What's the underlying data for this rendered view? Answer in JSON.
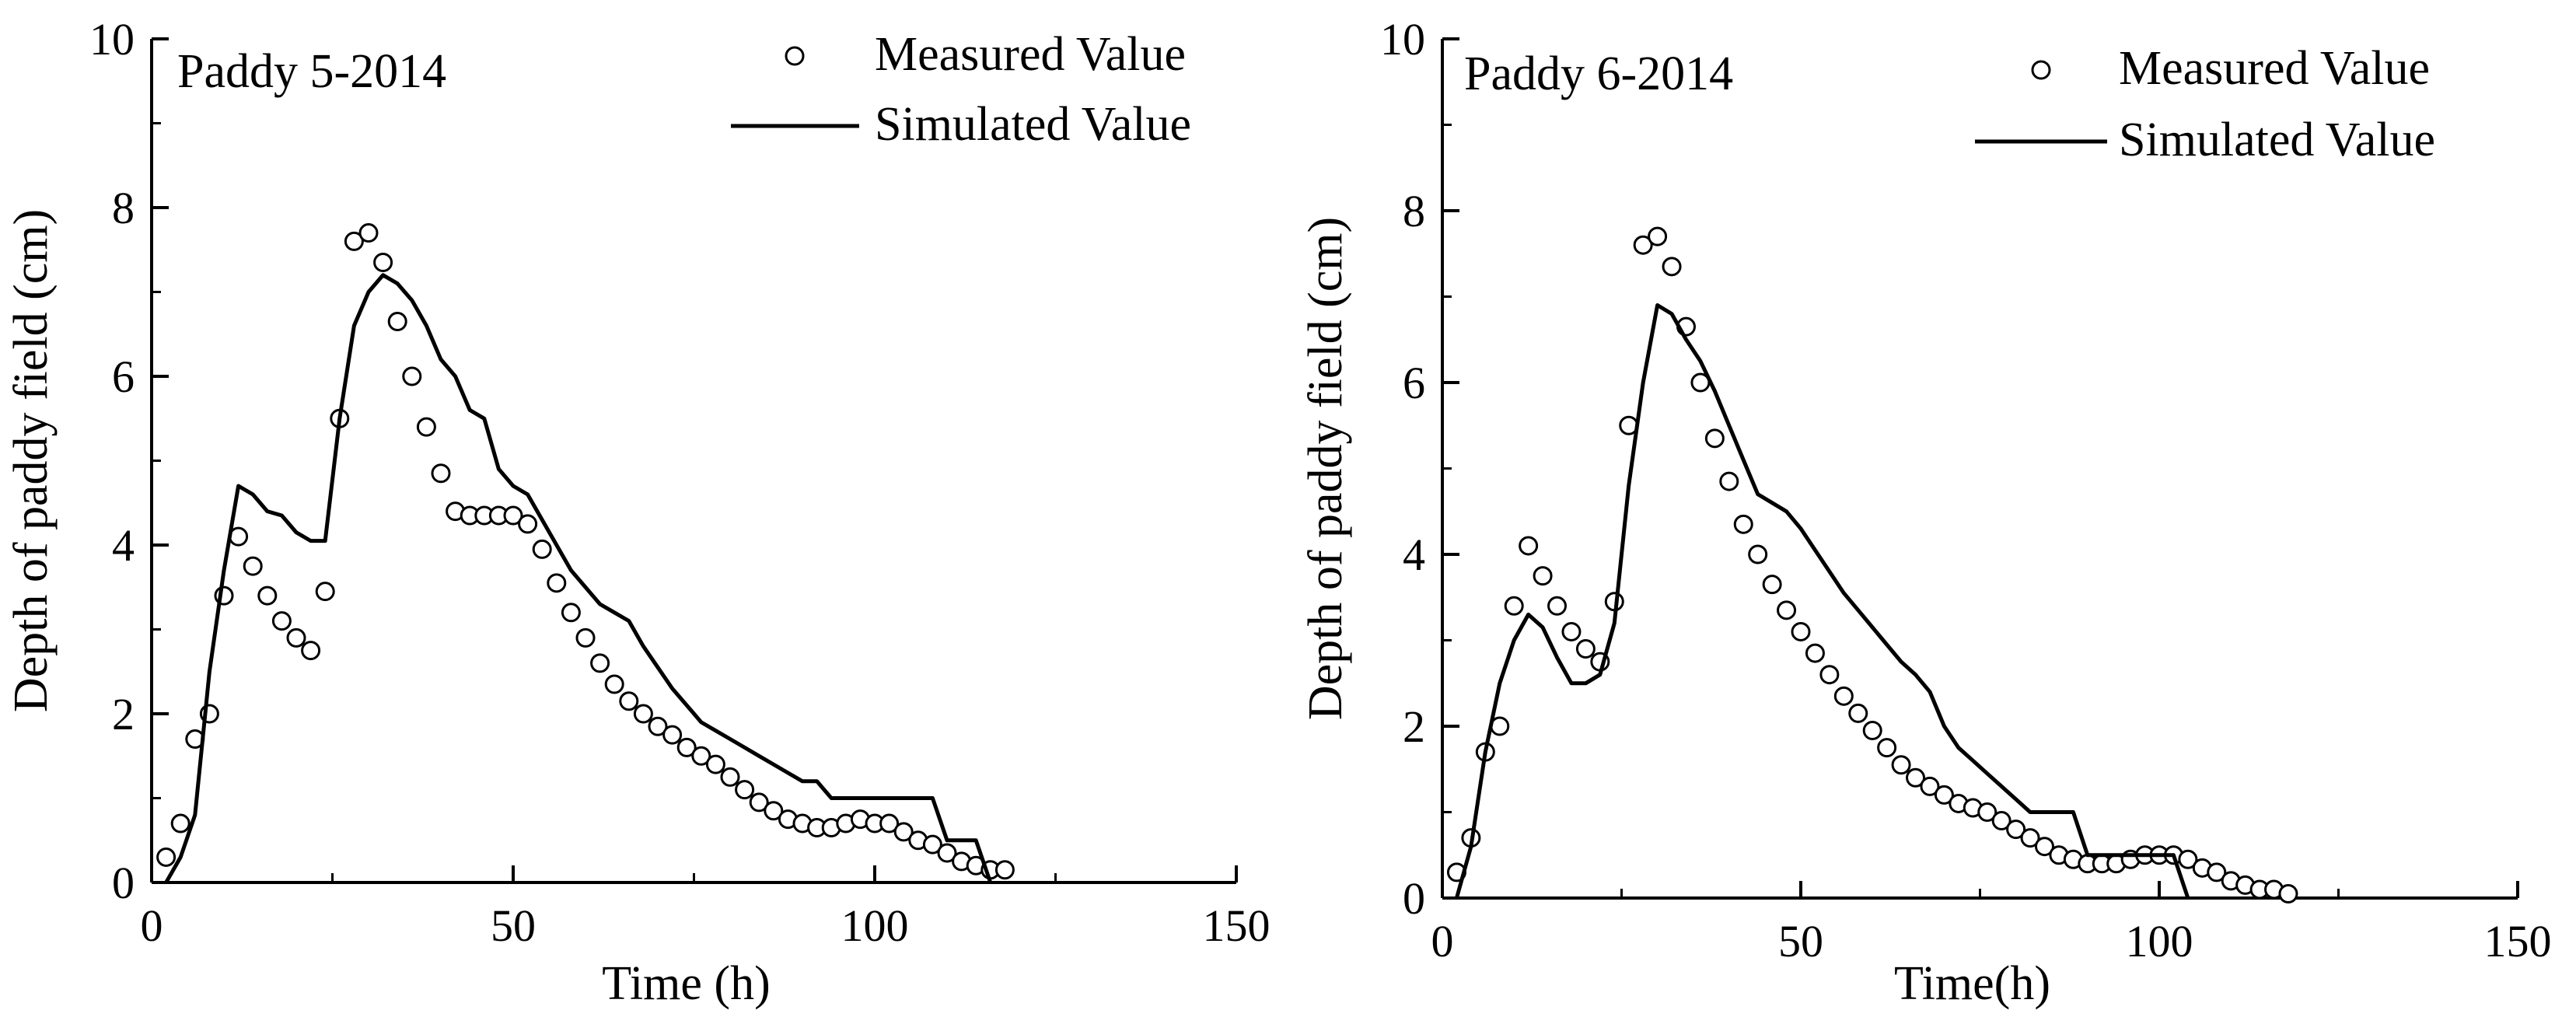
{
  "chart_data": [
    {
      "type": "line+scatter",
      "panel_label": "Paddy 5-2014",
      "xlabel": "Time (h)",
      "ylabel": "Depth of paddy field (cm)",
      "xlim": [
        0,
        150
      ],
      "ylim": [
        0,
        10
      ],
      "xticks": [
        0,
        50,
        100,
        150
      ],
      "yticks": [
        0,
        2,
        4,
        6,
        8,
        10
      ],
      "grid": false,
      "legend_position": "top-right",
      "series": [
        {
          "name": "Measured Value",
          "style": "open-circle markers",
          "x": [
            2,
            4,
            6,
            8,
            10,
            12,
            14,
            16,
            18,
            20,
            22,
            24,
            26,
            28,
            30,
            32,
            34,
            36,
            38,
            40,
            42,
            44,
            46,
            48,
            50,
            52,
            54,
            56,
            58,
            60,
            62,
            64,
            66,
            68,
            70,
            72,
            74,
            76,
            78,
            80,
            82,
            84,
            86,
            88,
            90,
            92,
            94,
            96,
            98,
            100,
            102,
            104,
            106,
            108,
            110,
            112,
            114,
            116,
            118
          ],
          "y": [
            0.3,
            0.7,
            1.7,
            2.0,
            3.4,
            4.1,
            3.75,
            3.4,
            3.1,
            2.9,
            2.75,
            3.45,
            5.5,
            7.6,
            7.7,
            7.35,
            6.65,
            6.0,
            5.4,
            4.85,
            4.4,
            4.35,
            4.35,
            4.35,
            4.35,
            4.25,
            3.95,
            3.55,
            3.2,
            2.9,
            2.6,
            2.35,
            2.15,
            2.0,
            1.85,
            1.75,
            1.6,
            1.5,
            1.4,
            1.25,
            1.1,
            0.95,
            0.85,
            0.75,
            0.7,
            0.65,
            0.65,
            0.7,
            0.75,
            0.7,
            0.7,
            0.6,
            0.5,
            0.45,
            0.35,
            0.25,
            0.2,
            0.15,
            0.15
          ]
        },
        {
          "name": "Simulated Value",
          "style": "solid line",
          "x": [
            2,
            4,
            6,
            8,
            10,
            12,
            14,
            16,
            18,
            20,
            22,
            24,
            26,
            28,
            30,
            32,
            34,
            36,
            38,
            40,
            42,
            44,
            46,
            48,
            50,
            52,
            54,
            56,
            58,
            60,
            62,
            64,
            66,
            68,
            70,
            72,
            74,
            76,
            78,
            80,
            82,
            84,
            86,
            88,
            90,
            92,
            94,
            96,
            98,
            100,
            102,
            104,
            106,
            108,
            110,
            112,
            114,
            116
          ],
          "y": [
            0.0,
            0.3,
            0.8,
            2.5,
            3.7,
            4.7,
            4.6,
            4.4,
            4.35,
            4.15,
            4.05,
            4.05,
            5.5,
            6.6,
            7.0,
            7.2,
            7.1,
            6.9,
            6.6,
            6.2,
            6.0,
            5.6,
            5.5,
            4.9,
            4.7,
            4.6,
            4.3,
            4.0,
            3.7,
            3.5,
            3.3,
            3.2,
            3.1,
            2.8,
            2.55,
            2.3,
            2.1,
            1.9,
            1.8,
            1.7,
            1.6,
            1.5,
            1.4,
            1.3,
            1.2,
            1.2,
            1.0,
            1.0,
            1.0,
            1.0,
            1.0,
            1.0,
            1.0,
            1.0,
            0.5,
            0.5,
            0.5,
            0.0
          ]
        }
      ]
    },
    {
      "type": "line+scatter",
      "panel_label": "Paddy 6-2014",
      "xlabel": "Time(h)",
      "ylabel": "Depth of paddy field (cm)",
      "xlim": [
        0,
        150
      ],
      "ylim": [
        0,
        10
      ],
      "xticks": [
        0,
        50,
        100,
        150
      ],
      "yticks": [
        0,
        2,
        4,
        6,
        8,
        10
      ],
      "grid": false,
      "legend_position": "top-right",
      "series": [
        {
          "name": "Measured Value",
          "style": "open-circle markers",
          "x": [
            2,
            4,
            6,
            8,
            10,
            12,
            14,
            16,
            18,
            20,
            22,
            24,
            26,
            28,
            30,
            32,
            34,
            36,
            38,
            40,
            42,
            44,
            46,
            48,
            50,
            52,
            54,
            56,
            58,
            60,
            62,
            64,
            66,
            68,
            70,
            72,
            74,
            76,
            78,
            80,
            82,
            84,
            86,
            88,
            90,
            92,
            94,
            96,
            98,
            100,
            102,
            104,
            106,
            108,
            110,
            112,
            114,
            116,
            118
          ],
          "y": [
            0.3,
            0.7,
            1.7,
            2.0,
            3.4,
            4.1,
            3.75,
            3.4,
            3.1,
            2.9,
            2.75,
            3.45,
            5.5,
            7.6,
            7.7,
            7.35,
            6.65,
            6.0,
            5.35,
            4.85,
            4.35,
            4.0,
            3.65,
            3.35,
            3.1,
            2.85,
            2.6,
            2.35,
            2.15,
            1.95,
            1.75,
            1.55,
            1.4,
            1.3,
            1.2,
            1.1,
            1.05,
            1.0,
            0.9,
            0.8,
            0.7,
            0.6,
            0.5,
            0.45,
            0.4,
            0.4,
            0.4,
            0.45,
            0.5,
            0.5,
            0.5,
            0.45,
            0.35,
            0.3,
            0.2,
            0.15,
            0.1,
            0.1,
            0.05
          ]
        },
        {
          "name": "Simulated Value",
          "style": "solid line",
          "x": [
            2,
            4,
            6,
            8,
            10,
            12,
            14,
            16,
            18,
            20,
            22,
            24,
            26,
            28,
            30,
            32,
            34,
            36,
            38,
            40,
            42,
            44,
            46,
            48,
            50,
            52,
            54,
            56,
            58,
            60,
            62,
            64,
            66,
            68,
            70,
            72,
            74,
            76,
            78,
            80,
            82,
            84,
            86,
            88,
            90,
            92,
            94,
            96,
            98,
            100,
            102,
            104
          ],
          "y": [
            0.0,
            0.6,
            1.7,
            2.5,
            3.0,
            3.3,
            3.15,
            2.8,
            2.5,
            2.5,
            2.6,
            3.2,
            4.8,
            6.0,
            6.9,
            6.8,
            6.5,
            6.25,
            5.9,
            5.5,
            5.1,
            4.7,
            4.6,
            4.5,
            4.3,
            4.05,
            3.8,
            3.55,
            3.35,
            3.15,
            2.95,
            2.75,
            2.6,
            2.4,
            2.0,
            1.75,
            1.6,
            1.45,
            1.3,
            1.15,
            1.0,
            1.0,
            1.0,
            1.0,
            0.5,
            0.5,
            0.5,
            0.5,
            0.5,
            0.5,
            0.5,
            0.0
          ]
        }
      ]
    }
  ]
}
